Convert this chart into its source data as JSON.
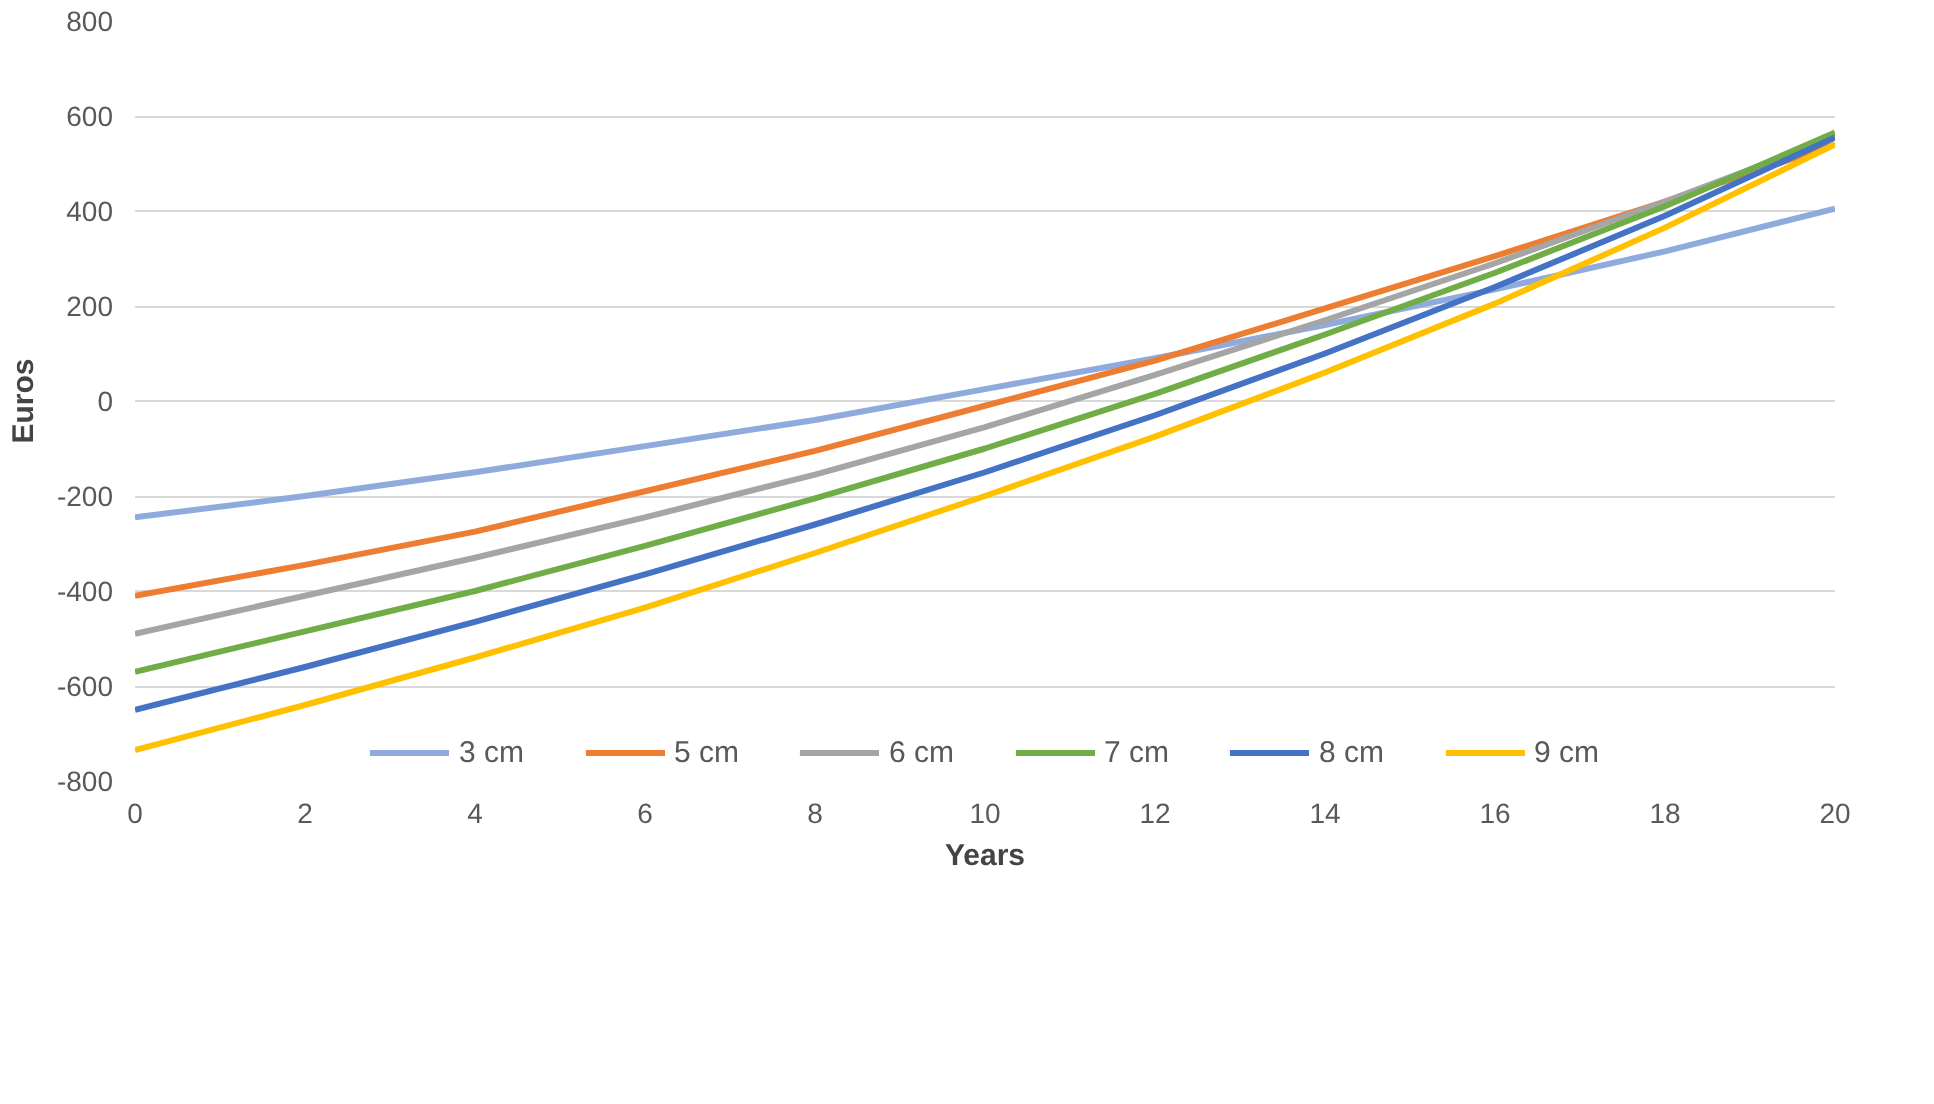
{
  "chart_data": {
    "type": "line",
    "xlabel": "Years",
    "ylabel": "Euros",
    "x": [
      0,
      2,
      4,
      6,
      8,
      10,
      12,
      14,
      16,
      18,
      20
    ],
    "series": [
      {
        "name": "3 cm",
        "color": "#8faadc",
        "values": [
          -245,
          -200,
          -150,
          -95,
          -40,
          25,
          90,
          160,
          235,
          315,
          405
        ]
      },
      {
        "name": "5 cm",
        "color": "#ed7d31",
        "values": [
          -410,
          -345,
          -275,
          -190,
          -105,
          -10,
          85,
          195,
          305,
          420,
          540
        ]
      },
      {
        "name": "6 cm",
        "color": "#a5a5a5",
        "values": [
          -490,
          -410,
          -330,
          -245,
          -155,
          -55,
          55,
          170,
          290,
          420,
          555
        ]
      },
      {
        "name": "7 cm",
        "color": "#70ad47",
        "values": [
          -570,
          -485,
          -400,
          -305,
          -205,
          -100,
          15,
          140,
          270,
          410,
          565
        ]
      },
      {
        "name": "8 cm",
        "color": "#4472c4",
        "values": [
          -650,
          -560,
          -465,
          -365,
          -260,
          -150,
          -30,
          100,
          240,
          390,
          555
        ]
      },
      {
        "name": "9 cm",
        "color": "#ffc000",
        "values": [
          -735,
          -640,
          -540,
          -435,
          -320,
          -200,
          -75,
          60,
          205,
          365,
          540
        ]
      }
    ],
    "xlim": [
      0,
      20
    ],
    "xticks": [
      0,
      2,
      4,
      6,
      8,
      10,
      12,
      14,
      16,
      18,
      20
    ],
    "ylim": [
      -800,
      800
    ],
    "yticks": [
      -800,
      -600,
      -400,
      -200,
      0,
      200,
      400,
      600,
      800
    ],
    "grid": "y",
    "legend": "bottom",
    "marker": "none",
    "line_style": "solid"
  }
}
